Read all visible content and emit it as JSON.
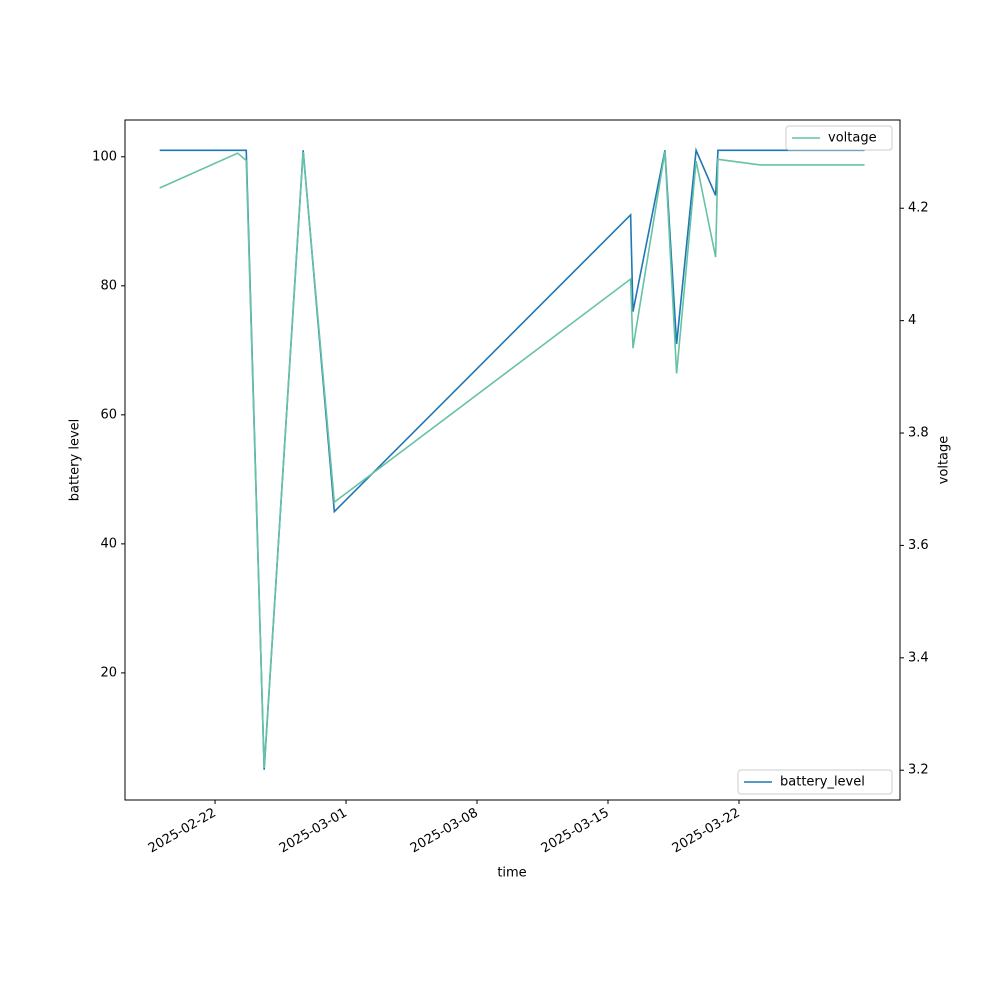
{
  "chart_data": {
    "type": "line",
    "x_label": "time",
    "y_label": "battery level",
    "y2_label": "voltage",
    "xlim": [
      "2025-02-17T04:30",
      "2025-03-30T14:30"
    ],
    "xticks": [
      "2025-02-22",
      "2025-03-01",
      "2025-03-08",
      "2025-03-15",
      "2025-03-22"
    ],
    "ylim": [
      0.3,
      105.7
    ],
    "yticks": [
      20,
      40,
      60,
      80,
      100
    ],
    "y2lim": [
      3.147,
      4.357
    ],
    "y2ticks": [
      3.2,
      3.4,
      3.6,
      3.8,
      4.0,
      4.2
    ],
    "grid": false,
    "series": [
      {
        "name": "battery_level",
        "color": "#1f77b4",
        "axis": "y",
        "legend": "lower right",
        "x": [
          "2025-02-19T01:00",
          "2025-02-23T16:00",
          "2025-02-24T15:00",
          "2025-02-26T17:00",
          "2025-02-28T09:00",
          "2025-03-16T05:00",
          "2025-03-16T08:00",
          "2025-03-18T01:00",
          "2025-03-18T16:00",
          "2025-03-19T17:00",
          "2025-03-20T18:00",
          "2025-03-20T21:00",
          "2025-03-28T17:00"
        ],
        "values": [
          101,
          101,
          5,
          101,
          45,
          91,
          76,
          101,
          71,
          101,
          94,
          101,
          101
        ]
      },
      {
        "name": "voltage",
        "color": "#66c2a5",
        "axis": "y2",
        "legend": "upper right",
        "x": [
          "2025-02-19T01:00",
          "2025-02-23T05:00",
          "2025-02-23T16:00",
          "2025-02-24T15:00",
          "2025-02-26T17:00",
          "2025-02-28T09:00",
          "2025-03-16T05:00",
          "2025-03-16T08:00",
          "2025-03-18T01:00",
          "2025-03-18T16:00",
          "2025-03-19T17:00",
          "2025-03-20T18:00",
          "2025-03-20T21:00",
          "2025-03-23T03:00",
          "2025-03-28T17:00"
        ],
        "values": [
          4.236,
          4.298,
          4.285,
          3.204,
          4.3,
          3.677,
          4.074,
          3.951,
          4.301,
          3.906,
          4.284,
          4.113,
          4.287,
          4.277,
          4.277
        ]
      }
    ]
  }
}
